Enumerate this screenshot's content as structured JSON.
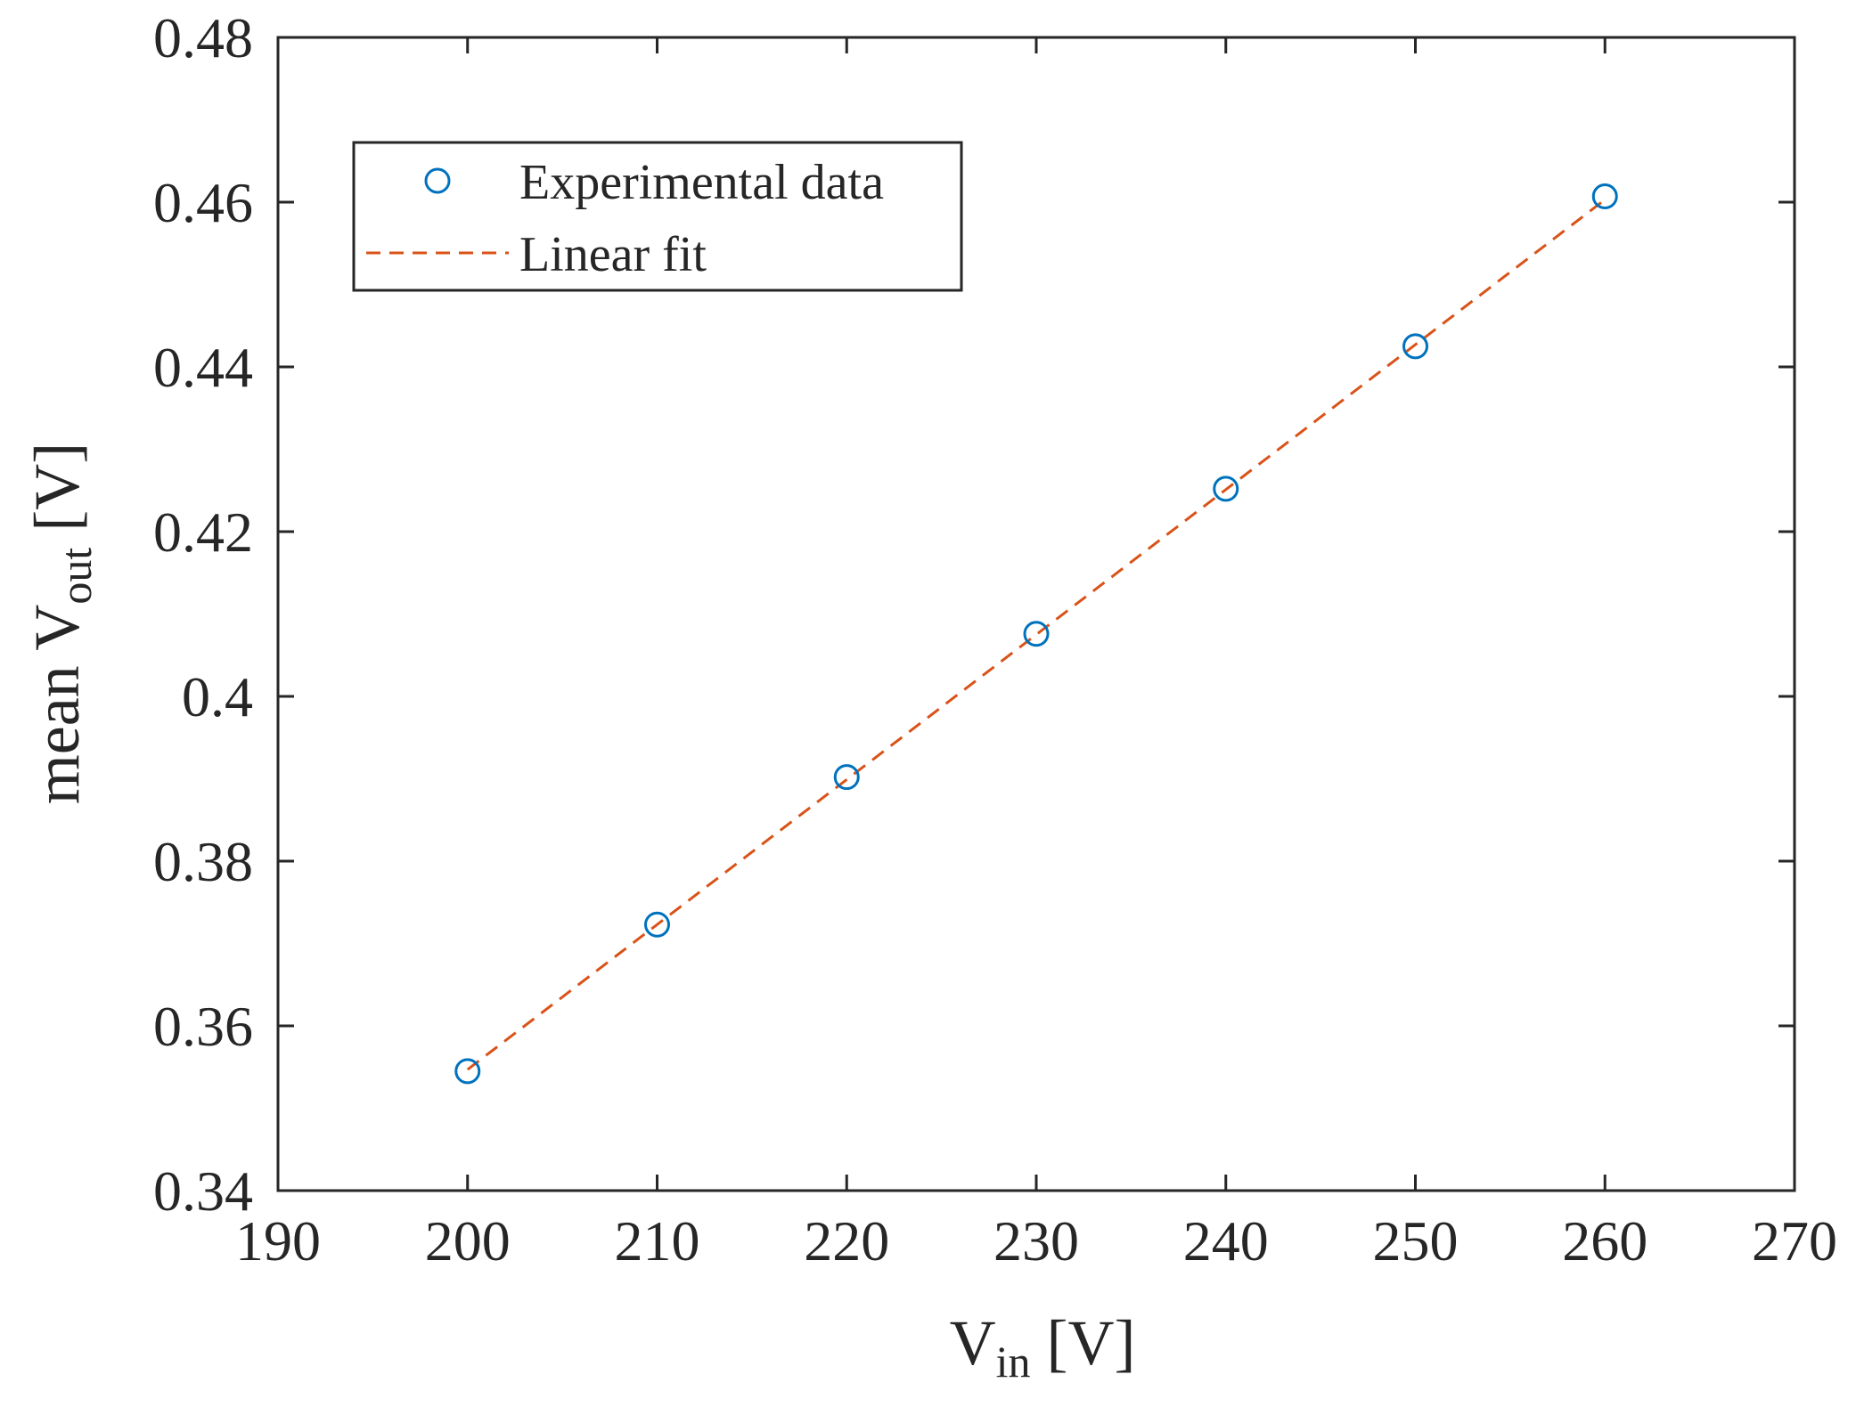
{
  "chart_data": {
    "type": "scatter",
    "title": "",
    "xlabel": {
      "main": "V",
      "sub": "in",
      "unit": " [V]"
    },
    "ylabel": {
      "prefix": "mean V",
      "sub": "out",
      "unit": " [V]"
    },
    "xlim": [
      190,
      270
    ],
    "ylim": [
      0.34,
      0.48
    ],
    "xticks": [
      190,
      200,
      210,
      220,
      230,
      240,
      250,
      260,
      270
    ],
    "xtick_labels": [
      "190",
      "200",
      "210",
      "220",
      "230",
      "240",
      "250",
      "260",
      "270"
    ],
    "yticks": [
      0.34,
      0.36,
      0.38,
      0.4,
      0.42,
      0.44,
      0.46,
      0.48
    ],
    "ytick_labels": [
      "0.34",
      "0.36",
      "0.38",
      "0.4",
      "0.42",
      "0.44",
      "0.46",
      "0.48"
    ],
    "grid": false,
    "legend_position": "top-left",
    "series": [
      {
        "name": "Experimental data",
        "kind": "markers",
        "marker": "circle-open",
        "color": "#0072BD",
        "x": [
          200,
          210,
          220,
          230,
          240,
          250,
          260
        ],
        "y": [
          0.3545,
          0.3723,
          0.3902,
          0.4076,
          0.4252,
          0.4425,
          0.4607
        ]
      },
      {
        "name": "Linear fit",
        "kind": "line",
        "style": "dashed",
        "color": "#D95319",
        "x": [
          200,
          260
        ],
        "y": [
          0.3547,
          0.4603
        ]
      }
    ]
  }
}
